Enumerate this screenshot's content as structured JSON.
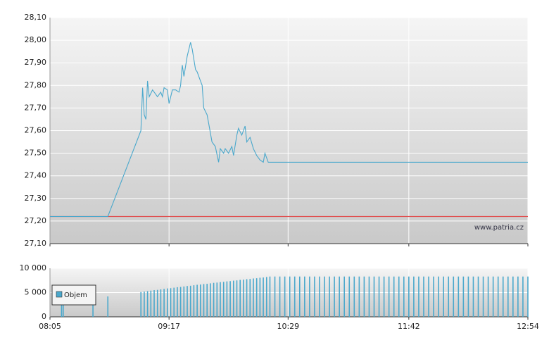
{
  "chart_data": [
    {
      "type": "line",
      "x": [
        "08:05",
        "08:40",
        "09:00",
        "09:01",
        "09:02",
        "09:03",
        "09:04",
        "09:05",
        "09:07",
        "09:09",
        "09:10",
        "09:12",
        "09:13",
        "09:14",
        "09:16",
        "09:17",
        "09:19",
        "09:21",
        "09:23",
        "09:24",
        "09:25",
        "09:26",
        "09:28",
        "09:30",
        "09:31",
        "09:33",
        "09:34",
        "09:36",
        "09:37",
        "09:38",
        "09:40",
        "09:41",
        "09:43",
        "09:45",
        "09:47",
        "09:48",
        "09:50",
        "09:51",
        "09:53",
        "09:55",
        "09:56",
        "09:58",
        "09:59",
        "10:01",
        "10:03",
        "10:04",
        "10:06",
        "10:08",
        "10:10",
        "10:12",
        "10:14",
        "10:15",
        "10:17",
        "12:54"
      ],
      "series": [
        {
          "color": "#4aa8cc",
          "values": [
            27.22,
            27.22,
            27.6,
            27.79,
            27.67,
            27.65,
            27.82,
            27.75,
            27.78,
            27.76,
            27.75,
            27.77,
            27.75,
            27.79,
            27.78,
            27.72,
            27.78,
            27.78,
            27.77,
            27.8,
            27.89,
            27.84,
            27.93,
            27.99,
            27.96,
            27.87,
            27.86,
            27.82,
            27.8,
            27.7,
            27.67,
            27.63,
            27.55,
            27.53,
            27.46,
            27.52,
            27.5,
            27.52,
            27.5,
            27.53,
            27.49,
            27.58,
            27.61,
            27.58,
            27.62,
            27.55,
            27.57,
            27.52,
            27.49,
            27.47,
            27.46,
            27.5,
            27.46,
            27.46
          ]
        }
      ],
      "reference_line": {
        "value": 27.22,
        "color": "#e05050"
      },
      "xlim": [
        "08:05",
        "12:54"
      ],
      "ylim": [
        27.1,
        28.1
      ],
      "yticks": [
        {
          "value": 27.1,
          "label": "27,10"
        },
        {
          "value": 27.2,
          "label": "27,20"
        },
        {
          "value": 27.3,
          "label": "27,30"
        },
        {
          "value": 27.4,
          "label": "27,40"
        },
        {
          "value": 27.5,
          "label": "27,50"
        },
        {
          "value": 27.6,
          "label": "27,60"
        },
        {
          "value": 27.7,
          "label": "27,70"
        },
        {
          "value": 27.8,
          "label": "27,80"
        },
        {
          "value": 27.9,
          "label": "27,90"
        },
        {
          "value": 28.0,
          "label": "28,00"
        },
        {
          "value": 28.1,
          "label": "28,10"
        }
      ],
      "grid": true,
      "watermark": "www.patria.cz"
    },
    {
      "type": "bar",
      "x": [
        "08:12",
        "08:13",
        "08:31",
        "08:40",
        "09:00",
        "09:02",
        "09:04",
        "09:06",
        "09:08",
        "09:10",
        "09:12",
        "09:14",
        "09:16",
        "09:18",
        "09:20",
        "09:22",
        "09:24",
        "09:26",
        "09:28",
        "09:30",
        "09:32",
        "09:34",
        "09:36",
        "09:38",
        "09:40",
        "09:42",
        "09:44",
        "09:46",
        "09:48",
        "09:50",
        "09:52",
        "09:54",
        "09:56",
        "09:58",
        "10:00",
        "10:02",
        "10:04",
        "10:06",
        "10:08",
        "10:10",
        "10:12",
        "10:14",
        "10:16",
        "10:18",
        "10:21",
        "10:24",
        "10:27",
        "10:30",
        "10:33",
        "10:36",
        "10:39",
        "10:42",
        "10:45",
        "10:48",
        "10:51",
        "10:54",
        "10:57",
        "11:00",
        "11:03",
        "11:06",
        "11:09",
        "11:12",
        "11:15",
        "11:18",
        "11:21",
        "11:24",
        "11:27",
        "11:30",
        "11:33",
        "11:36",
        "11:39",
        "11:42",
        "11:45",
        "11:48",
        "11:51",
        "11:54",
        "11:57",
        "12:00",
        "12:03",
        "12:06",
        "12:09",
        "12:12",
        "12:15",
        "12:18",
        "12:21",
        "12:24",
        "12:27",
        "12:30",
        "12:33",
        "12:36",
        "12:39",
        "12:42",
        "12:45",
        "12:48",
        "12:51",
        "12:54"
      ],
      "series": [
        {
          "name": "Objem",
          "color": "#4aa8cc",
          "values": [
            4300,
            4300,
            4200,
            4200,
            5100,
            5200,
            5300,
            5400,
            5500,
            5550,
            5650,
            5750,
            5850,
            5900,
            6000,
            6100,
            6150,
            6250,
            6350,
            6400,
            6500,
            6600,
            6650,
            6750,
            6800,
            6900,
            7000,
            7050,
            7150,
            7200,
            7300,
            7350,
            7450,
            7500,
            7600,
            7650,
            7750,
            7800,
            7900,
            7950,
            8050,
            8100,
            8200,
            8300,
            8300,
            8300,
            8300,
            8300,
            8300,
            8300,
            8300,
            8300,
            8300,
            8300,
            8300,
            8300,
            8300,
            8300,
            8300,
            8300,
            8300,
            8300,
            8300,
            8300,
            8300,
            8300,
            8300,
            8300,
            8300,
            8300,
            8300,
            8300,
            8300,
            8300,
            8300,
            8300,
            8300,
            8300,
            8300,
            8300,
            8300,
            8300,
            8300,
            8300,
            8300,
            8300,
            8300,
            8300,
            8300,
            8300,
            8300,
            8300,
            8300,
            8300,
            8300,
            8300
          ]
        }
      ],
      "xlim": [
        "08:05",
        "12:54"
      ],
      "xticks": [
        "08:05",
        "09:17",
        "10:29",
        "11:42",
        "12:54"
      ],
      "ylim": [
        0,
        10000
      ],
      "yticks": [
        0,
        {
          "value": 5000,
          "label": "5 000"
        },
        {
          "value": 10000,
          "label": "10 000"
        }
      ],
      "grid": true
    }
  ]
}
